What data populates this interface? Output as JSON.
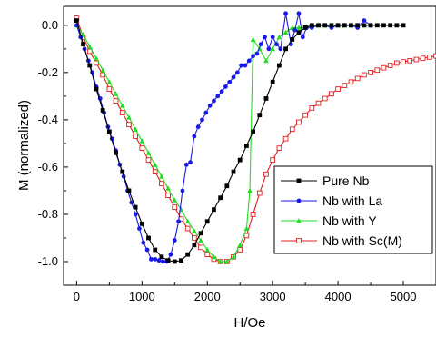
{
  "chart_data": {
    "type": "line",
    "title": "",
    "xlabel": "H/Oe",
    "ylabel": "M (normalized)",
    "xlim": [
      -200,
      5500
    ],
    "ylim": [
      -1.1,
      0.08
    ],
    "xticks": [
      0,
      1000,
      2000,
      3000,
      4000,
      5000
    ],
    "xtick_labels": [
      "0",
      "1000",
      "2000",
      "3000",
      "4000",
      "5000"
    ],
    "yticks": [
      0.0,
      -0.2,
      -0.4,
      -0.6,
      -0.8,
      -1.0
    ],
    "ytick_labels": [
      "0.0",
      "-0.2",
      "-0.4",
      "-0.6",
      "-0.8",
      "-1.0"
    ],
    "grid": false,
    "legend_position": "right-center",
    "series": [
      {
        "name": "Pure Nb",
        "color": "#000000",
        "marker": "square-filled",
        "x": [
          0,
          100,
          200,
          300,
          400,
          500,
          600,
          700,
          800,
          900,
          1000,
          1100,
          1200,
          1300,
          1400,
          1500,
          1600,
          1700,
          1800,
          1900,
          2000,
          2100,
          2200,
          2300,
          2400,
          2500,
          2600,
          2700,
          2800,
          2900,
          3000,
          3100,
          3200,
          3300,
          3400,
          3500,
          3600,
          3700,
          3800,
          3900,
          4000,
          4100,
          4200,
          4300,
          4400,
          4500,
          4600,
          4700,
          4800,
          4900,
          5000
        ],
        "y": [
          0.02,
          -0.08,
          -0.17,
          -0.27,
          -0.36,
          -0.45,
          -0.54,
          -0.62,
          -0.7,
          -0.77,
          -0.84,
          -0.9,
          -0.95,
          -0.98,
          -0.995,
          -1.0,
          -0.995,
          -0.97,
          -0.93,
          -0.88,
          -0.83,
          -0.78,
          -0.73,
          -0.68,
          -0.62,
          -0.57,
          -0.51,
          -0.45,
          -0.38,
          -0.31,
          -0.24,
          -0.17,
          -0.1,
          -0.06,
          -0.03,
          -0.01,
          0.0,
          0.0,
          0.0,
          0.0,
          0.0,
          0.0,
          0.0,
          0.0,
          0.0,
          0.0,
          0.0,
          0.0,
          0.0,
          0.0,
          0.0
        ]
      },
      {
        "name": "Nb with La",
        "color": "#1a1ae6",
        "marker": "circle-filled",
        "x": [
          0,
          60,
          120,
          180,
          240,
          300,
          360,
          420,
          480,
          540,
          600,
          660,
          720,
          780,
          840,
          900,
          960,
          1020,
          1080,
          1140,
          1200,
          1260,
          1320,
          1380,
          1440,
          1500,
          1560,
          1620,
          1680,
          1740,
          1800,
          1860,
          1920,
          1980,
          2040,
          2100,
          2160,
          2220,
          2280,
          2340,
          2400,
          2460,
          2520,
          2580,
          2640,
          2700,
          2760,
          2820,
          2880,
          2940,
          3000,
          3060,
          3120,
          3200,
          3280,
          3340,
          3400,
          3460,
          3520,
          3600,
          3700,
          3800,
          3900,
          4000,
          4100,
          4200,
          4300,
          4400,
          4500
        ],
        "y": [
          0.0,
          -0.05,
          -0.1,
          -0.15,
          -0.2,
          -0.26,
          -0.31,
          -0.37,
          -0.43,
          -0.48,
          -0.53,
          -0.59,
          -0.64,
          -0.7,
          -0.75,
          -0.8,
          -0.86,
          -0.92,
          -0.95,
          -0.99,
          -0.99,
          -0.995,
          -1.0,
          -1.0,
          -0.97,
          -0.91,
          -0.83,
          -0.7,
          -0.59,
          -0.58,
          -0.47,
          -0.43,
          -0.4,
          -0.37,
          -0.34,
          -0.32,
          -0.3,
          -0.28,
          -0.26,
          -0.24,
          -0.22,
          -0.2,
          -0.17,
          -0.17,
          -0.15,
          -0.13,
          -0.12,
          -0.08,
          -0.05,
          -0.1,
          -0.05,
          -0.08,
          -0.1,
          0.05,
          -0.08,
          -0.02,
          0.05,
          -0.05,
          -0.01,
          -0.01,
          0.0,
          0.0,
          -0.01,
          0.0,
          0.0,
          0.0,
          -0.01,
          0.02,
          0.0
        ]
      },
      {
        "name": "Nb with Y",
        "color": "#22dd22",
        "marker": "triangle-filled",
        "x": [
          0,
          100,
          200,
          300,
          400,
          500,
          600,
          700,
          800,
          900,
          1000,
          1100,
          1200,
          1300,
          1400,
          1500,
          1600,
          1700,
          1800,
          1900,
          2000,
          2100,
          2200,
          2300,
          2400,
          2500,
          2600,
          2650,
          2700,
          2800,
          2900,
          3000,
          3100,
          3200,
          3300,
          3400,
          3500,
          3600,
          3700,
          3800,
          3900,
          4000,
          4100,
          4200,
          4300,
          4400,
          4500
        ],
        "y": [
          0.0,
          -0.04,
          -0.09,
          -0.14,
          -0.19,
          -0.24,
          -0.29,
          -0.34,
          -0.39,
          -0.44,
          -0.49,
          -0.54,
          -0.59,
          -0.64,
          -0.69,
          -0.74,
          -0.78,
          -0.83,
          -0.87,
          -0.91,
          -0.95,
          -0.98,
          -1.0,
          -1.0,
          -0.98,
          -0.93,
          -0.86,
          -0.7,
          -0.06,
          -0.1,
          -0.15,
          -0.1,
          -0.05,
          -0.03,
          -0.01,
          -0.01,
          -0.01,
          0.0,
          0.0,
          0.0,
          0.0,
          0.0,
          0.0,
          0.0,
          0.0,
          0.0,
          0.0
        ]
      },
      {
        "name": "Nb with Sc(M)",
        "color": "#e02020",
        "marker": "square-open",
        "x": [
          0,
          100,
          200,
          300,
          400,
          500,
          600,
          700,
          800,
          900,
          1000,
          1100,
          1200,
          1300,
          1400,
          1500,
          1600,
          1700,
          1800,
          1900,
          2000,
          2100,
          2200,
          2300,
          2400,
          2500,
          2600,
          2700,
          2800,
          2900,
          3000,
          3100,
          3200,
          3300,
          3400,
          3500,
          3600,
          3700,
          3800,
          3900,
          4000,
          4100,
          4200,
          4300,
          4400,
          4500,
          4600,
          4700,
          4800,
          4900,
          5000,
          5100,
          5200,
          5300,
          5400,
          5500
        ],
        "y": [
          0.03,
          -0.05,
          -0.11,
          -0.16,
          -0.21,
          -0.27,
          -0.32,
          -0.37,
          -0.42,
          -0.47,
          -0.52,
          -0.57,
          -0.62,
          -0.67,
          -0.72,
          -0.77,
          -0.82,
          -0.86,
          -0.9,
          -0.94,
          -0.97,
          -0.99,
          -1.0,
          -1.0,
          -0.98,
          -0.95,
          -0.89,
          -0.8,
          -0.71,
          -0.63,
          -0.57,
          -0.52,
          -0.48,
          -0.44,
          -0.41,
          -0.38,
          -0.35,
          -0.33,
          -0.31,
          -0.29,
          -0.27,
          -0.255,
          -0.24,
          -0.225,
          -0.21,
          -0.2,
          -0.19,
          -0.18,
          -0.17,
          -0.16,
          -0.155,
          -0.15,
          -0.145,
          -0.14,
          -0.135,
          -0.13
        ]
      }
    ]
  }
}
